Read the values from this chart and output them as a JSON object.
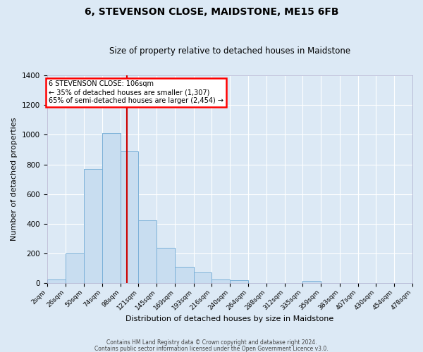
{
  "title": "6, STEVENSON CLOSE, MAIDSTONE, ME15 6FB",
  "subtitle": "Size of property relative to detached houses in Maidstone",
  "xlabel": "Distribution of detached houses by size in Maidstone",
  "ylabel": "Number of detached properties",
  "bar_color": "#c8ddf0",
  "bar_edge_color": "#7ab0d8",
  "background_color": "#dce9f5",
  "grid_color": "#ffffff",
  "vline_color": "#cc0000",
  "vline_x": 106,
  "annotation_line1": "6 STEVENSON CLOSE: 106sqm",
  "annotation_line2": "← 35% of detached houses are smaller (1,307)",
  "annotation_line3": "65% of semi-detached houses are larger (2,454) →",
  "bin_edges": [
    2,
    26,
    50,
    74,
    98,
    121,
    145,
    169,
    193,
    216,
    240,
    264,
    288,
    312,
    335,
    359,
    383,
    407,
    430,
    454,
    478
  ],
  "bin_counts": [
    25,
    200,
    770,
    1010,
    890,
    425,
    240,
    110,
    70,
    25,
    18,
    3,
    0,
    0,
    15,
    0,
    0,
    0,
    0,
    0
  ],
  "ylim": [
    0,
    1400
  ],
  "yticks": [
    0,
    200,
    400,
    600,
    800,
    1000,
    1200,
    1400
  ],
  "footer1": "Contains HM Land Registry data © Crown copyright and database right 2024.",
  "footer2": "Contains public sector information licensed under the Open Government Licence v3.0."
}
